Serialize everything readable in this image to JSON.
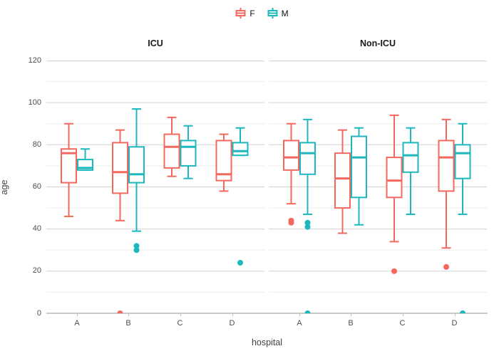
{
  "legend": {
    "items": [
      {
        "label": "F"
      },
      {
        "label": "M"
      }
    ]
  },
  "chart_data": {
    "type": "boxplot",
    "title": "",
    "xlabel": "hospital",
    "ylabel": "age",
    "ylim": [
      0,
      120
    ],
    "y_ticks": [
      0,
      20,
      40,
      60,
      80,
      100,
      120
    ],
    "categories": [
      "A",
      "B",
      "C",
      "D"
    ],
    "legend_position": "top-center",
    "grid": "major-and-minor",
    "groups": [
      {
        "name": "F",
        "color": "#F4685F"
      },
      {
        "name": "M",
        "color": "#1CB8BE"
      }
    ],
    "facets": [
      {
        "title": "ICU",
        "series": [
          {
            "group": "F",
            "boxes": [
              {
                "category": "A",
                "whisker_low": 46,
                "q1": 62,
                "median": 76,
                "q3": 78,
                "whisker_high": 90,
                "outliers": []
              },
              {
                "category": "B",
                "whisker_low": 44,
                "q1": 57,
                "median": 67,
                "q3": 81,
                "whisker_high": 87,
                "outliers": [
                  0
                ]
              },
              {
                "category": "C",
                "whisker_low": 65,
                "q1": 69,
                "median": 79,
                "q3": 85,
                "whisker_high": 93,
                "outliers": []
              },
              {
                "category": "D",
                "whisker_low": 58,
                "q1": 63,
                "median": 66,
                "q3": 82,
                "whisker_high": 85,
                "outliers": []
              }
            ]
          },
          {
            "group": "M",
            "boxes": [
              {
                "category": "A",
                "whisker_low": 68,
                "q1": 68,
                "median": 69,
                "q3": 73,
                "whisker_high": 78,
                "outliers": []
              },
              {
                "category": "B",
                "whisker_low": 39,
                "q1": 62,
                "median": 66,
                "q3": 79,
                "whisker_high": 97,
                "outliers": [
                  32,
                  30
                ]
              },
              {
                "category": "C",
                "whisker_low": 64,
                "q1": 70,
                "median": 79,
                "q3": 82,
                "whisker_high": 89,
                "outliers": []
              },
              {
                "category": "D",
                "whisker_low": 75,
                "q1": 75,
                "median": 77,
                "q3": 81,
                "whisker_high": 88,
                "outliers": [
                  24
                ]
              }
            ]
          }
        ]
      },
      {
        "title": "Non-ICU",
        "series": [
          {
            "group": "F",
            "boxes": [
              {
                "category": "A",
                "whisker_low": 52,
                "q1": 68,
                "median": 74,
                "q3": 82,
                "whisker_high": 90,
                "outliers": [
                  44,
                  43
                ]
              },
              {
                "category": "B",
                "whisker_low": 38,
                "q1": 50,
                "median": 64,
                "q3": 76,
                "whisker_high": 87,
                "outliers": []
              },
              {
                "category": "C",
                "whisker_low": 34,
                "q1": 55,
                "median": 63,
                "q3": 74,
                "whisker_high": 94,
                "outliers": [
                  20
                ]
              },
              {
                "category": "D",
                "whisker_low": 31,
                "q1": 58,
                "median": 74,
                "q3": 82,
                "whisker_high": 92,
                "outliers": [
                  22
                ]
              }
            ]
          },
          {
            "group": "M",
            "boxes": [
              {
                "category": "A",
                "whisker_low": 47,
                "q1": 66,
                "median": 76,
                "q3": 81,
                "whisker_high": 92,
                "outliers": [
                  43,
                  41,
                  0
                ]
              },
              {
                "category": "B",
                "whisker_low": 42,
                "q1": 55,
                "median": 74,
                "q3": 84,
                "whisker_high": 88,
                "outliers": []
              },
              {
                "category": "C",
                "whisker_low": 47,
                "q1": 67,
                "median": 75,
                "q3": 81,
                "whisker_high": 88,
                "outliers": []
              },
              {
                "category": "D",
                "whisker_low": 47,
                "q1": 64,
                "median": 76,
                "q3": 80,
                "whisker_high": 90,
                "outliers": [
                  0
                ]
              }
            ]
          }
        ]
      }
    ]
  }
}
